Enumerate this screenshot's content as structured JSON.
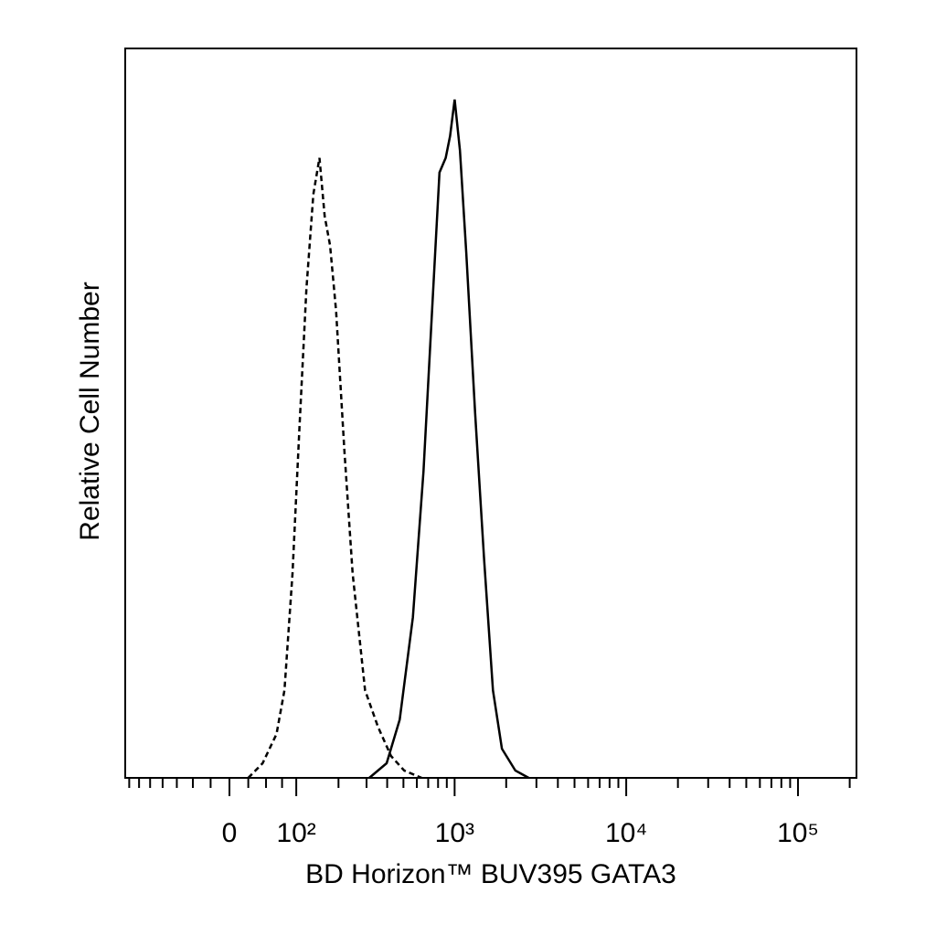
{
  "chart_data": {
    "type": "line",
    "x_label": "BD Horizon™ BUV395 GATA3",
    "y_label": "Relative Cell Number",
    "x_scale": "biexponential",
    "xlim": [
      -186,
      219000
    ],
    "xticks": [
      0,
      {
        "value": 100,
        "label": "10²"
      },
      {
        "value": 1000,
        "label": "10³"
      },
      {
        "value": 10000,
        "label": "10⁴"
      },
      {
        "value": 100000,
        "label": "10⁵"
      }
    ],
    "xminorticks": [
      -175,
      -150,
      -125,
      -100,
      -75,
      -50,
      -25,
      25,
      50,
      75,
      200,
      300,
      400,
      500,
      600,
      700,
      800,
      900,
      2000,
      3000,
      4000,
      5000,
      6000,
      7000,
      8000,
      9000,
      20000,
      30000,
      40000,
      50000,
      60000,
      70000,
      80000,
      90000,
      200000
    ],
    "ylim": [
      0,
      100
    ],
    "series": [
      {
        "color": "#000000",
        "line_style": "dashed",
        "x": [
          25,
          45,
          66,
          79,
          93,
          106,
          120,
          135,
          149,
          162,
          176,
          193,
          218,
          246,
          294,
          352,
          422,
          505,
          641
        ],
        "values": [
          0,
          2,
          6,
          12,
          28,
          48,
          67,
          80,
          85,
          77,
          73,
          64,
          45,
          28,
          12,
          7,
          3,
          1,
          0
        ]
      },
      {
        "color": "#000000",
        "line_style": "solid",
        "x": [
          312,
          397,
          475,
          569,
          657,
          741,
          815,
          887,
          941,
          1000,
          1074,
          1169,
          1318,
          1486,
          1675,
          1888,
          2260,
          2704
        ],
        "values": [
          0,
          2,
          8,
          22,
          42,
          65,
          83,
          85,
          88,
          93,
          86,
          72,
          50,
          30,
          12,
          4,
          1,
          0
        ]
      }
    ]
  }
}
